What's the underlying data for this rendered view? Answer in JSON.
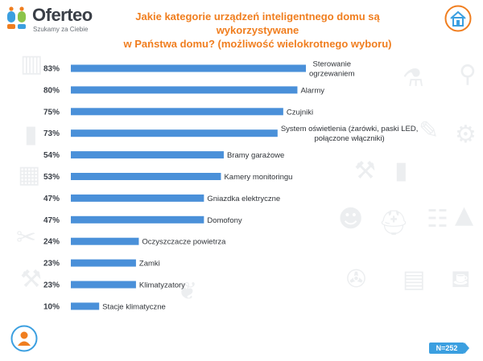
{
  "brand": {
    "name": "Oferteo",
    "tagline": "Szukamy za Ciebie"
  },
  "sample_size": "N=252",
  "colors": {
    "bar": "#4a90d9",
    "title": "#f07e1f",
    "badge": "#3b9fe0",
    "text": "#3a3f47"
  },
  "icons": {
    "logo": "oferteo-logo-icon",
    "home": "smart-home-icon",
    "person": "person-icon"
  },
  "chart_data": {
    "type": "bar",
    "orientation": "horizontal",
    "title_lines": [
      "Jakie kategorie urządzeń inteligentnego domu są wykorzystywane",
      "w Państwa domu? (możliwość wielokrotnego wyboru)"
    ],
    "categories": [
      [
        "Sterowanie",
        "ogrzewaniem"
      ],
      [
        "Alarmy"
      ],
      [
        "Czujniki"
      ],
      [
        "System oświetlenia (żarówki, paski LED,",
        "połączone włączniki)"
      ],
      [
        "Bramy garażowe"
      ],
      [
        "Kamery monitoringu"
      ],
      [
        "Gniazdka elektryczne"
      ],
      [
        "Domofony"
      ],
      [
        "Oczyszczacze powietrza"
      ],
      [
        "Zamki"
      ],
      [
        "Klimatyzatory"
      ],
      [
        "Stacje klimatyczne"
      ]
    ],
    "values": [
      83,
      80,
      75,
      73,
      54,
      53,
      47,
      47,
      24,
      23,
      23,
      10
    ],
    "value_labels": [
      "83%",
      "80%",
      "75%",
      "73%",
      "54%",
      "53%",
      "47%",
      "47%",
      "24%",
      "23%",
      "23%",
      "10%"
    ],
    "unit": "%",
    "xlim": [
      0,
      100
    ],
    "grid": false,
    "legend": "none"
  }
}
